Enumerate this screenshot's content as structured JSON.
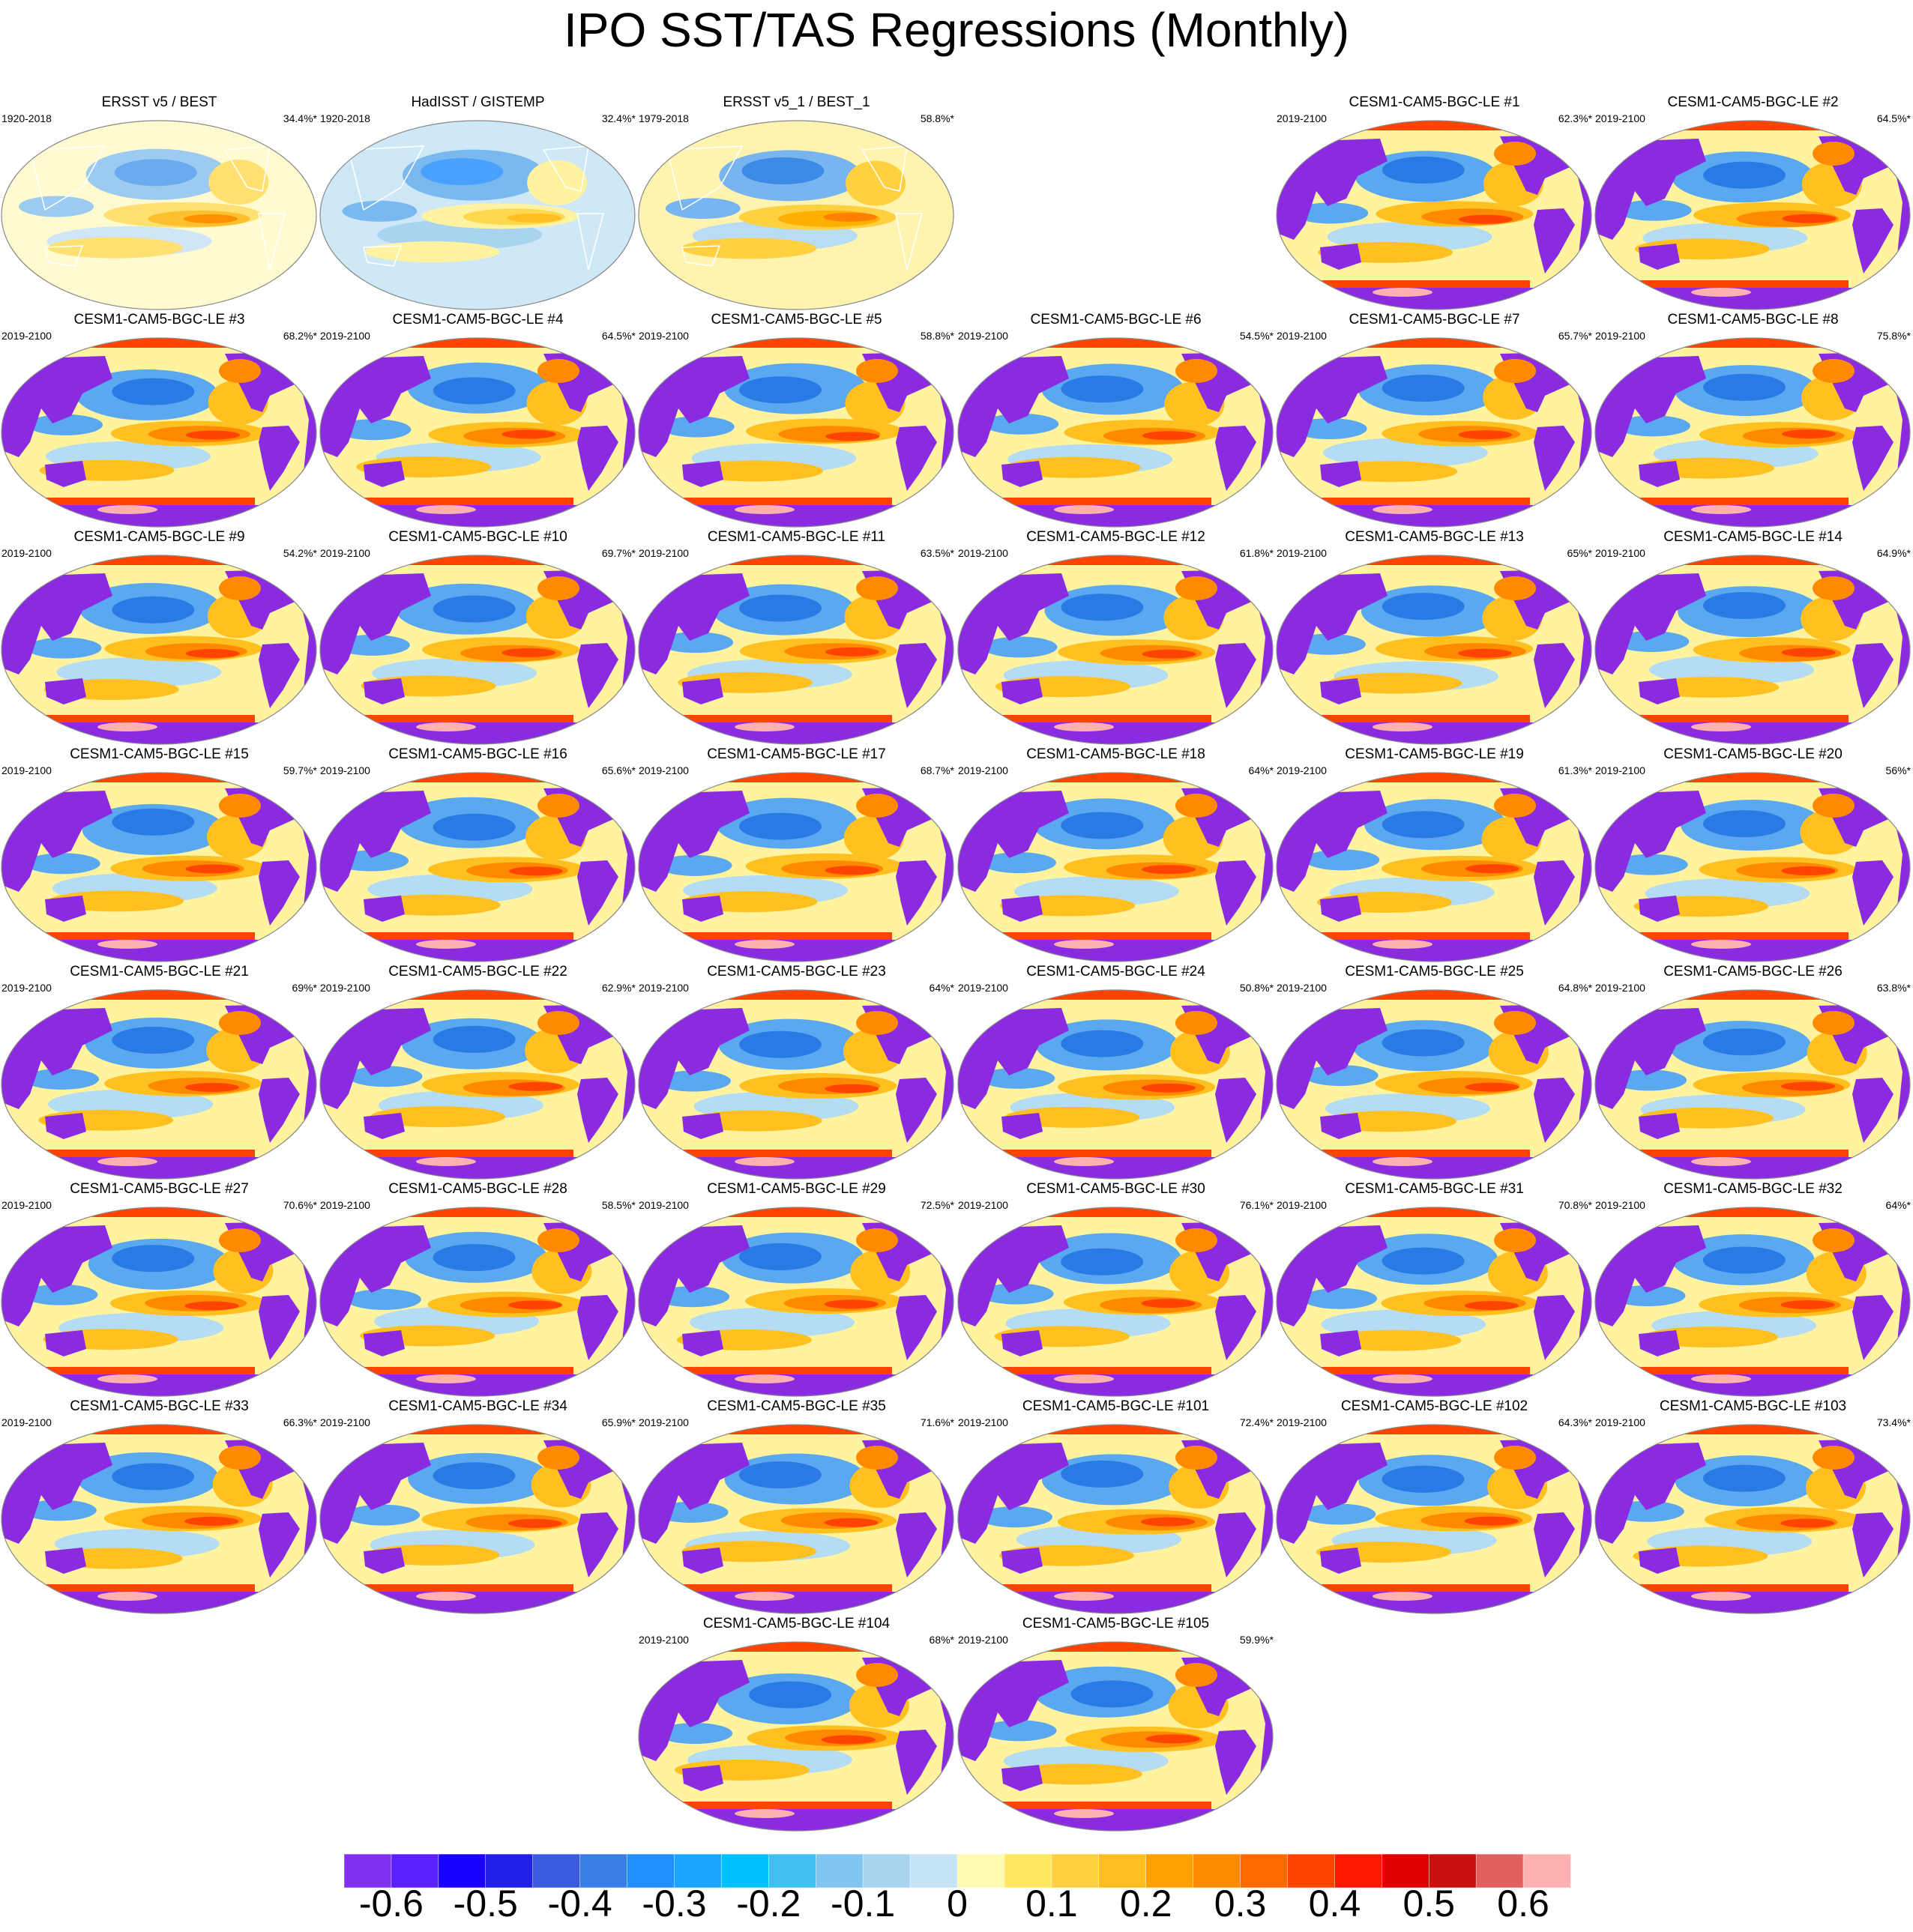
{
  "title": "IPO SST/TAS Regressions (Monthly)",
  "panels": [
    {
      "title": "ERSST v5 / BEST",
      "period": "1920-2018",
      "pct": "34.4%*",
      "style": "obs1"
    },
    {
      "title": "HadISST / GISTEMP",
      "period": "1920-2018",
      "pct": "32.4%*",
      "style": "obs2"
    },
    {
      "title": "ERSST v5_1 / BEST_1",
      "period": "1979-2018",
      "pct": "58.8%*",
      "style": "obs3"
    },
    {
      "title": "CESM1-CAM5-BGC-LE #1",
      "period": "2019-2100",
      "pct": "62.3%*",
      "style": "model"
    },
    {
      "title": "CESM1-CAM5-BGC-LE #2",
      "period": "2019-2100",
      "pct": "64.5%*",
      "style": "model"
    },
    {
      "title": "CESM1-CAM5-BGC-LE #3",
      "period": "2019-2100",
      "pct": "68.2%*",
      "style": "model"
    },
    {
      "title": "CESM1-CAM5-BGC-LE #4",
      "period": "2019-2100",
      "pct": "64.5%*",
      "style": "model"
    },
    {
      "title": "CESM1-CAM5-BGC-LE #5",
      "period": "2019-2100",
      "pct": "58.8%*",
      "style": "model"
    },
    {
      "title": "CESM1-CAM5-BGC-LE #6",
      "period": "2019-2100",
      "pct": "54.5%*",
      "style": "model"
    },
    {
      "title": "CESM1-CAM5-BGC-LE #7",
      "period": "2019-2100",
      "pct": "65.7%*",
      "style": "model"
    },
    {
      "title": "CESM1-CAM5-BGC-LE #8",
      "period": "2019-2100",
      "pct": "75.8%*",
      "style": "model"
    },
    {
      "title": "CESM1-CAM5-BGC-LE #9",
      "period": "2019-2100",
      "pct": "54.2%*",
      "style": "model"
    },
    {
      "title": "CESM1-CAM5-BGC-LE #10",
      "period": "2019-2100",
      "pct": "69.7%*",
      "style": "model"
    },
    {
      "title": "CESM1-CAM5-BGC-LE #11",
      "period": "2019-2100",
      "pct": "63.5%*",
      "style": "model"
    },
    {
      "title": "CESM1-CAM5-BGC-LE #12",
      "period": "2019-2100",
      "pct": "61.8%*",
      "style": "model"
    },
    {
      "title": "CESM1-CAM5-BGC-LE #13",
      "period": "2019-2100",
      "pct": "65%*",
      "style": "model"
    },
    {
      "title": "CESM1-CAM5-BGC-LE #14",
      "period": "2019-2100",
      "pct": "64.9%*",
      "style": "model"
    },
    {
      "title": "CESM1-CAM5-BGC-LE #15",
      "period": "2019-2100",
      "pct": "59.7%*",
      "style": "model"
    },
    {
      "title": "CESM1-CAM5-BGC-LE #16",
      "period": "2019-2100",
      "pct": "65.6%*",
      "style": "model"
    },
    {
      "title": "CESM1-CAM5-BGC-LE #17",
      "period": "2019-2100",
      "pct": "68.7%*",
      "style": "model"
    },
    {
      "title": "CESM1-CAM5-BGC-LE #18",
      "period": "2019-2100",
      "pct": "64%*",
      "style": "model"
    },
    {
      "title": "CESM1-CAM5-BGC-LE #19",
      "period": "2019-2100",
      "pct": "61.3%*",
      "style": "model"
    },
    {
      "title": "CESM1-CAM5-BGC-LE #20",
      "period": "2019-2100",
      "pct": "56%*",
      "style": "model"
    },
    {
      "title": "CESM1-CAM5-BGC-LE #21",
      "period": "2019-2100",
      "pct": "69%*",
      "style": "model"
    },
    {
      "title": "CESM1-CAM5-BGC-LE #22",
      "period": "2019-2100",
      "pct": "62.9%*",
      "style": "model"
    },
    {
      "title": "CESM1-CAM5-BGC-LE #23",
      "period": "2019-2100",
      "pct": "64%*",
      "style": "model"
    },
    {
      "title": "CESM1-CAM5-BGC-LE #24",
      "period": "2019-2100",
      "pct": "50.8%*",
      "style": "model"
    },
    {
      "title": "CESM1-CAM5-BGC-LE #25",
      "period": "2019-2100",
      "pct": "64.8%*",
      "style": "model"
    },
    {
      "title": "CESM1-CAM5-BGC-LE #26",
      "period": "2019-2100",
      "pct": "63.8%*",
      "style": "model"
    },
    {
      "title": "CESM1-CAM5-BGC-LE #27",
      "period": "2019-2100",
      "pct": "70.6%*",
      "style": "model"
    },
    {
      "title": "CESM1-CAM5-BGC-LE #28",
      "period": "2019-2100",
      "pct": "58.5%*",
      "style": "model"
    },
    {
      "title": "CESM1-CAM5-BGC-LE #29",
      "period": "2019-2100",
      "pct": "72.5%*",
      "style": "model"
    },
    {
      "title": "CESM1-CAM5-BGC-LE #30",
      "period": "2019-2100",
      "pct": "76.1%*",
      "style": "model"
    },
    {
      "title": "CESM1-CAM5-BGC-LE #31",
      "period": "2019-2100",
      "pct": "70.8%*",
      "style": "model"
    },
    {
      "title": "CESM1-CAM5-BGC-LE #32",
      "period": "2019-2100",
      "pct": "64%*",
      "style": "model"
    },
    {
      "title": "CESM1-CAM5-BGC-LE #33",
      "period": "2019-2100",
      "pct": "66.3%*",
      "style": "model"
    },
    {
      "title": "CESM1-CAM5-BGC-LE #34",
      "period": "2019-2100",
      "pct": "65.9%*",
      "style": "model"
    },
    {
      "title": "CESM1-CAM5-BGC-LE #35",
      "period": "2019-2100",
      "pct": "71.6%*",
      "style": "model"
    },
    {
      "title": "CESM1-CAM5-BGC-LE #101",
      "period": "2019-2100",
      "pct": "72.4%*",
      "style": "model"
    },
    {
      "title": "CESM1-CAM5-BGC-LE #102",
      "period": "2019-2100",
      "pct": "64.3%*",
      "style": "model"
    },
    {
      "title": "CESM1-CAM5-BGC-LE #103",
      "period": "2019-2100",
      "pct": "73.4%*",
      "style": "model"
    },
    {
      "title": "CESM1-CAM5-BGC-LE #104",
      "period": "2019-2100",
      "pct": "68%*",
      "style": "model"
    },
    {
      "title": "CESM1-CAM5-BGC-LE #105",
      "period": "2019-2100",
      "pct": "59.9%*",
      "style": "model"
    }
  ],
  "colorbar": {
    "colors": [
      "#8130f0",
      "#5a1eff",
      "#1a00ff",
      "#1f1fe8",
      "#3a5be0",
      "#3a7fe6",
      "#2090ff",
      "#1aa5ff",
      "#00bfff",
      "#40c0f0",
      "#80c6f0",
      "#a8d4f0",
      "#c4e4f6",
      "#fffbb0",
      "#ffe860",
      "#ffd040",
      "#ffbd20",
      "#ffa000",
      "#ff8a00",
      "#ff6a00",
      "#ff4400",
      "#ff1800",
      "#e00000",
      "#c81010",
      "#e06060",
      "#ffb0b0"
    ],
    "labels": [
      "-0.6",
      "-0.5",
      "-0.4",
      "-0.3",
      "-0.2",
      "-0.1",
      "0",
      "0.1",
      "0.2",
      "0.3",
      "0.4",
      "0.5",
      "0.6"
    ]
  }
}
